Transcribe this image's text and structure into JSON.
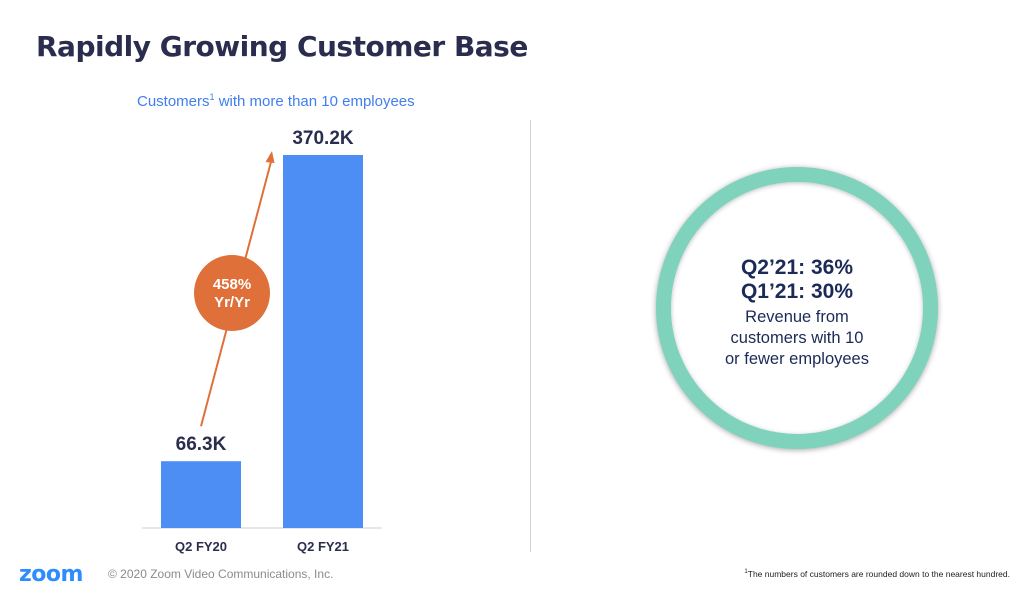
{
  "slide": {
    "title": "Rapidly Growing Customer Base"
  },
  "chart_data": {
    "type": "bar",
    "title": "Customers",
    "title_sup": "1",
    "title_rest": " with more than 10 employees",
    "categories": [
      "Q2 FY20",
      "Q2 FY21"
    ],
    "values": [
      66.3,
      370.2
    ],
    "data_labels": [
      "66.3K",
      "370.2K"
    ],
    "ylim": [
      0,
      370.2
    ],
    "grid": false,
    "bar_color": "#4d8ef5",
    "annotation": {
      "line1": "458%",
      "line2": "Yr/Yr",
      "color": "#e0703a"
    }
  },
  "callout": {
    "stat1": "Q2’21: 36%",
    "stat2": "Q1’21: 30%",
    "description": "Revenue from customers with 10 or fewer employees",
    "ring_color": "#7fd3bd"
  },
  "footer": {
    "logo": "zoom",
    "copyright": "© 2020 Zoom Video Communications, Inc.",
    "footnote_sup": "1",
    "footnote": "The numbers of customers are rounded down to the nearest hundred."
  }
}
